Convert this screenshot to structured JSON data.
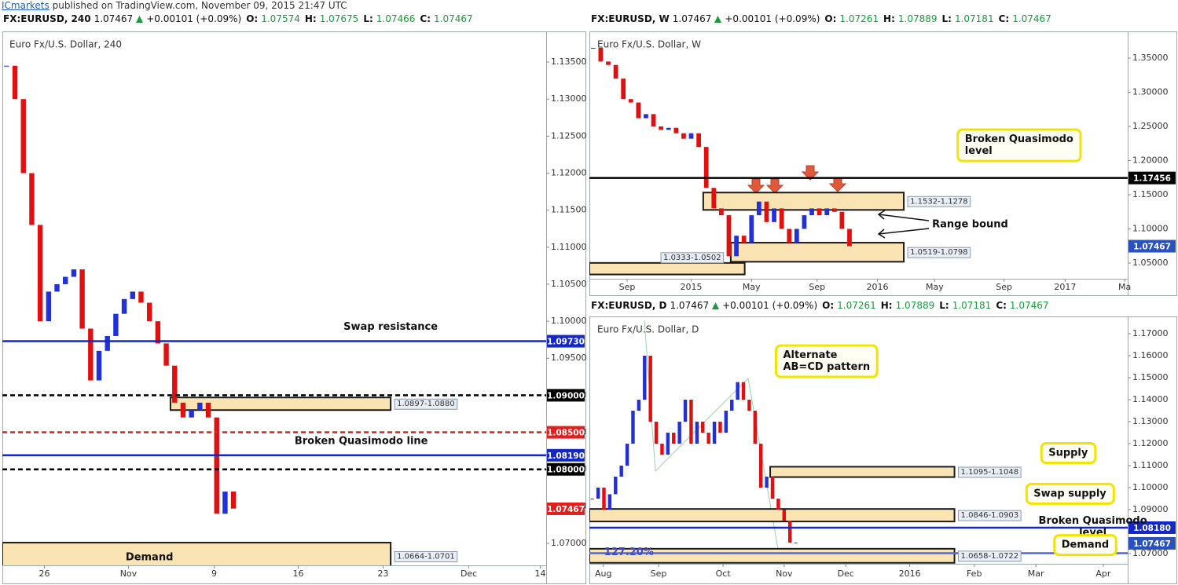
{
  "header": {
    "brand": "ICmarkets",
    "text": "published on TradingView.com, November 09, 2015 21:47 UTC"
  },
  "chart_data": [
    {
      "type": "candlestick",
      "info": {
        "symbol": "FX:EURUSD, 240",
        "last": "1.07467",
        "change": "+0.00101 (+0.09%)",
        "ohlc": [
          {
            "label": "O:",
            "value": "1.07574"
          },
          {
            "label": "H:",
            "value": "1.07675"
          },
          {
            "label": "L:",
            "value": "1.07466"
          },
          {
            "label": "C:",
            "value": "1.07467"
          }
        ]
      },
      "title": "Euro Fx/U.S. Dollar, 240",
      "xlim": [
        0,
        64.7
      ],
      "xticks": [
        {
          "value": 5,
          "label": "26"
        },
        {
          "value": 15,
          "label": "Nov"
        },
        {
          "value": 25.2,
          "label": "9"
        },
        {
          "value": 35.2,
          "label": "16"
        },
        {
          "value": 45.3,
          "label": "23"
        },
        {
          "value": 55.5,
          "label": "Dec"
        },
        {
          "value": 64,
          "label": "14"
        }
      ],
      "ylim": [
        1.06703,
        1.13914
      ],
      "yticks": [
        {
          "value": 1.135,
          "label": "1.13500"
        },
        {
          "value": 1.13,
          "label": "1.13000"
        },
        {
          "value": 1.125,
          "label": "1.12500"
        },
        {
          "value": 1.12,
          "label": "1.12000"
        },
        {
          "value": 1.115,
          "label": "1.11500"
        },
        {
          "value": 1.11,
          "label": "1.11000"
        },
        {
          "value": 1.105,
          "label": "1.10500"
        },
        {
          "value": 1.1,
          "label": "1.10000"
        },
        {
          "value": 1.095,
          "label": "1.09500"
        },
        {
          "value": 1.09,
          "label": "1.09000"
        },
        {
          "value": 1.085,
          "label": "1.08500"
        },
        {
          "value": 1.08,
          "label": "1.08000"
        },
        {
          "value": 1.075,
          "label": "1.07500"
        },
        {
          "value": 1.07,
          "label": "1.07000"
        }
      ],
      "up_color": "#2131d8",
      "down_color": "#e01010",
      "closes": [
        1.1345,
        1.13,
        1.12,
        1.113,
        1.1,
        1.104,
        1.105,
        1.106,
        1.107,
        1.099,
        1.092,
        1.096,
        1.098,
        1.101,
        1.103,
        1.104,
        1.1025,
        1.1,
        1.097,
        1.094,
        1.089,
        1.087,
        1.088,
        1.089,
        1.087,
        1.074,
        1.077,
        1.0747
      ],
      "levels": [
        {
          "value": 1.0973,
          "label": "1.09730",
          "color": "#1428c8",
          "dash": false,
          "line": true
        },
        {
          "value": 1.09,
          "label": "1.09000",
          "color": "#000000",
          "dash": true,
          "line": true
        },
        {
          "value": 1.085,
          "label": "1.08500",
          "color": "#e0201c",
          "dash": true,
          "line": true
        },
        {
          "value": 1.0819,
          "label": "1.08190",
          "color": "#1428c8",
          "dash": false,
          "line": true
        },
        {
          "value": 1.08,
          "label": "1.08000",
          "color": "#000000",
          "dash": true,
          "line": true
        },
        {
          "value": 1.07467,
          "label": "1.07467",
          "color": "#e0201c",
          "dash": false,
          "line": false
        }
      ],
      "zones": [
        {
          "low": 1.088,
          "high": 1.0897,
          "x0": 20,
          "x1": 46.2,
          "label": "1.0897-1.0880"
        },
        {
          "low": 1.0664,
          "high": 1.0701,
          "x0": 0,
          "x1": 46.2,
          "label": "1.0664-1.0701"
        }
      ],
      "annotations": [
        {
          "lines": [
            "Swap resistance"
          ],
          "x": 46.2,
          "y": 1.0992,
          "kind": "text"
        },
        {
          "lines": [
            "Broken Quasimodo line"
          ],
          "x": 42.7,
          "y": 1.0838,
          "kind": "text"
        },
        {
          "lines": [
            "Demand"
          ],
          "x": 17.5,
          "y": 1.0681,
          "kind": "text"
        }
      ]
    },
    {
      "type": "candlestick",
      "info": {
        "symbol": "FX:EURUSD, W",
        "last": "1.07467",
        "change": "+0.00101 (+0.09%)",
        "ohlc": [
          {
            "label": "O:",
            "value": "1.07261"
          },
          {
            "label": "H:",
            "value": "1.07889"
          },
          {
            "label": "L:",
            "value": "1.07181"
          },
          {
            "label": "C:",
            "value": "1.07467"
          }
        ]
      },
      "title": "Euro Fx/U.S. Dollar, W",
      "xlim": [
        0,
        71.4
      ],
      "xticks": [
        {
          "value": 5,
          "label": "Sep"
        },
        {
          "value": 13.5,
          "label": "2015"
        },
        {
          "value": 21.5,
          "label": "May"
        },
        {
          "value": 30.2,
          "label": "Sep"
        },
        {
          "value": 38.2,
          "label": "2016"
        },
        {
          "value": 45.8,
          "label": "May"
        },
        {
          "value": 55,
          "label": "Sep"
        },
        {
          "value": 63.1,
          "label": "2017"
        },
        {
          "value": 71,
          "label": "Ma"
        }
      ],
      "ylim": [
        1.02701,
        1.3891
      ],
      "yticks": [
        {
          "value": 1.35,
          "label": "1.35000"
        },
        {
          "value": 1.3,
          "label": "1.30000"
        },
        {
          "value": 1.25,
          "label": "1.25000"
        },
        {
          "value": 1.2,
          "label": "1.20000"
        },
        {
          "value": 1.15,
          "label": "1.15000"
        },
        {
          "value": 1.1,
          "label": "1.10000"
        },
        {
          "value": 1.05,
          "label": "1.05000"
        }
      ],
      "up_color": "#2131d8",
      "down_color": "#e01010",
      "closes": [
        1.365,
        1.345,
        1.34,
        1.32,
        1.29,
        1.285,
        1.262,
        1.268,
        1.25,
        1.245,
        1.248,
        1.24,
        1.232,
        1.24,
        1.22,
        1.16,
        1.13,
        1.12,
        1.06,
        1.09,
        1.08,
        1.12,
        1.14,
        1.11,
        1.13,
        1.1,
        1.08,
        1.1,
        1.12,
        1.13,
        1.12,
        1.13,
        1.125,
        1.1,
        1.0747
      ],
      "levels": [
        {
          "value": 1.17456,
          "label": "1.17456",
          "color": "#000000",
          "dash": false,
          "line": true
        },
        {
          "value": 1.07467,
          "label": "1.07467",
          "color": "#2a52be",
          "dash": false,
          "line": false
        }
      ],
      "zones": [
        {
          "low": 1.1278,
          "high": 1.1532,
          "x0": 15.1,
          "x1": 41.7,
          "label": "1.1532-1.1278"
        },
        {
          "low": 1.0519,
          "high": 1.0798,
          "x0": 18.75,
          "x1": 41.7,
          "label": "1.0519-1.0798"
        },
        {
          "low": 1.0333,
          "high": 1.0502,
          "x0": 0,
          "x1": 20.6,
          "label": "1.0333-1.0502",
          "label_at": "left"
        }
      ],
      "annotations": [
        {
          "lines": [
            "Broken Quasimodo",
            "level"
          ],
          "x": 57,
          "y": 1.2224,
          "kind": "callout"
        },
        {
          "lines": [
            "Range bound"
          ],
          "x": 50.5,
          "y": 1.1063,
          "kind": "text"
        }
      ]
    },
    {
      "type": "candlestick",
      "info": {
        "symbol": "FX:EURUSD, D",
        "last": "1.07467",
        "change": "+0.00101 (+0.09%)",
        "ohlc": [
          {
            "label": "O:",
            "value": "1.07261"
          },
          {
            "label": "H:",
            "value": "1.07889"
          },
          {
            "label": "L:",
            "value": "1.07181"
          },
          {
            "label": "C:",
            "value": "1.07467"
          }
        ]
      },
      "title": "Euro Fx/U.S. Dollar, D",
      "xlim": [
        0,
        92.6
      ],
      "xticks": [
        {
          "value": 2.4,
          "label": "Aug"
        },
        {
          "value": 11.9,
          "label": "Sep"
        },
        {
          "value": 23,
          "label": "Oct"
        },
        {
          "value": 33.5,
          "label": "Nov"
        },
        {
          "value": 44.1,
          "label": "Dec"
        },
        {
          "value": 55.1,
          "label": "2016"
        },
        {
          "value": 66.2,
          "label": "Feb"
        },
        {
          "value": 76.8,
          "label": "Mar"
        },
        {
          "value": 88.4,
          "label": "Apr"
        }
      ],
      "ylim": [
        1.06536,
        1.17786
      ],
      "yticks": [
        {
          "value": 1.17,
          "label": "1.17000"
        },
        {
          "value": 1.16,
          "label": "1.16000"
        },
        {
          "value": 1.15,
          "label": "1.15000"
        },
        {
          "value": 1.14,
          "label": "1.14000"
        },
        {
          "value": 1.13,
          "label": "1.13000"
        },
        {
          "value": 1.12,
          "label": "1.12000"
        },
        {
          "value": 1.11,
          "label": "1.11000"
        },
        {
          "value": 1.1,
          "label": "1.10000"
        },
        {
          "value": 1.09,
          "label": "1.09000"
        },
        {
          "value": 1.08,
          "label": "1.08000"
        },
        {
          "value": 1.07,
          "label": "1.07000"
        }
      ],
      "up_color": "#2131d8",
      "down_color": "#e01010",
      "closes": [
        1.095,
        1.1,
        1.09,
        1.097,
        1.105,
        1.11,
        1.12,
        1.135,
        1.14,
        1.16,
        1.13,
        1.12,
        1.115,
        1.125,
        1.12,
        1.13,
        1.14,
        1.12,
        1.13,
        1.125,
        1.12,
        1.13,
        1.125,
        1.135,
        1.14,
        1.148,
        1.14,
        1.135,
        1.12,
        1.1,
        1.105,
        1.095,
        1.09,
        1.085,
        1.075,
        1.0747
      ],
      "levels": [
        {
          "value": 1.0818,
          "label": "1.08180",
          "color": "#1428c8",
          "dash": false,
          "line": true
        },
        {
          "value": 1.07467,
          "label": "1.07467",
          "color": "#2a52be",
          "dash": false,
          "line": false
        },
        {
          "value": 1.0702,
          "color": "#5466d6",
          "dash": false,
          "line": true
        }
      ],
      "zones": [
        {
          "low": 1.1048,
          "high": 1.1095,
          "x0": 31.1,
          "x1": 62.8,
          "label": "1.1095-1.1048"
        },
        {
          "low": 1.0846,
          "high": 1.0903,
          "x0": 0,
          "x1": 62.8,
          "label": "1.0846-1.0903"
        },
        {
          "low": 1.0658,
          "high": 1.0722,
          "x0": 0,
          "x1": 62.8,
          "label": "1.0658-1.0722"
        }
      ],
      "annotations": [
        {
          "lines": [
            "Alternate",
            "AB=CD pattern"
          ],
          "x": 40.8,
          "y": 1.1575,
          "kind": "callout"
        },
        {
          "lines": [
            "Supply"
          ],
          "x": 82.4,
          "y": 1.1157,
          "kind": "callout"
        },
        {
          "lines": [
            "Swap supply"
          ],
          "x": 82.7,
          "y": 1.0972,
          "kind": "callout"
        },
        {
          "lines": [
            "Broken Quasimodo",
            "level"
          ],
          "x": 86.6,
          "y": 1.0822,
          "kind": "text"
        },
        {
          "lines": [
            "Demand"
          ],
          "x": 85.3,
          "y": 1.0739,
          "kind": "callout"
        },
        {
          "lines": [
            "127.20%"
          ],
          "x": 6.8,
          "y": 1.0706,
          "kind": "text",
          "color": "#3a4fd0"
        }
      ]
    }
  ]
}
